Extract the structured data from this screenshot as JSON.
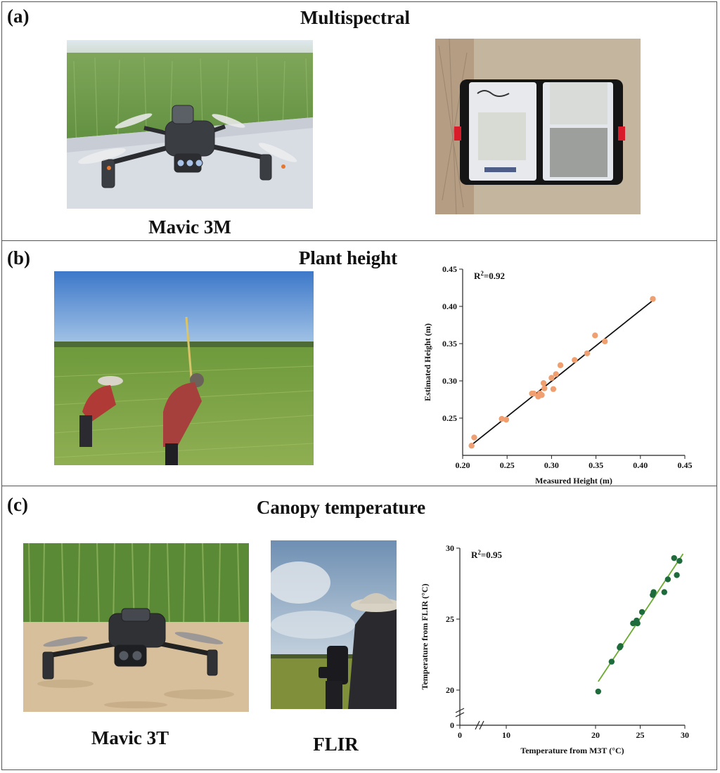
{
  "panels": {
    "a": {
      "label": "(a)",
      "title": "Multispectral",
      "drone_caption": "Mavic 3M",
      "images": {
        "drone": "drone-over-wheat-photo",
        "panel_case": "calibration-panel-case-photo"
      }
    },
    "b": {
      "label": "(b)",
      "title": "Plant height",
      "images": {
        "field": "field-measurement-photo"
      }
    },
    "c": {
      "label": "(c)",
      "title": "Canopy temperature",
      "drone_caption": "Mavic 3T",
      "flir_caption": "FLIR",
      "images": {
        "drone": "thermal-drone-photo",
        "flir": "flir-handheld-photo"
      }
    }
  },
  "colors": {
    "height_points": "#f0a070",
    "height_line": "#111111",
    "temp_points": "#1e6b3c",
    "temp_line": "#6aab2e"
  },
  "chart_data": [
    {
      "id": "height",
      "type": "scatter",
      "xlabel": "Measured Height (m)",
      "ylabel": "Estimated Height (m)",
      "annotation_base": "R",
      "annotation_sup": "2",
      "annotation_value": "=0.92",
      "xlim": [
        0.2,
        0.45
      ],
      "ylim": [
        0.2,
        0.45
      ],
      "xticks": [
        0.2,
        0.25,
        0.3,
        0.35,
        0.4,
        0.45
      ],
      "yticks": [
        0.25,
        0.3,
        0.35,
        0.4,
        0.45
      ],
      "xtick_labels": [
        "0.20",
        "0.25",
        "0.30",
        "0.35",
        "0.40",
        "0.45"
      ],
      "ytick_labels": [
        "0.25",
        "0.30",
        "0.35",
        "0.40",
        "0.45"
      ],
      "fit_line": [
        [
          0.21,
          0.214
        ],
        [
          0.414,
          0.408
        ]
      ],
      "points": [
        [
          0.21,
          0.213
        ],
        [
          0.213,
          0.224
        ],
        [
          0.244,
          0.249
        ],
        [
          0.249,
          0.248
        ],
        [
          0.278,
          0.283
        ],
        [
          0.28,
          0.283
        ],
        [
          0.285,
          0.279
        ],
        [
          0.287,
          0.283
        ],
        [
          0.289,
          0.281
        ],
        [
          0.291,
          0.297
        ],
        [
          0.292,
          0.29
        ],
        [
          0.3,
          0.304
        ],
        [
          0.302,
          0.289
        ],
        [
          0.305,
          0.309
        ],
        [
          0.31,
          0.321
        ],
        [
          0.326,
          0.328
        ],
        [
          0.34,
          0.337
        ],
        [
          0.349,
          0.361
        ],
        [
          0.36,
          0.353
        ],
        [
          0.414,
          0.41
        ]
      ],
      "grid": false
    },
    {
      "id": "temperature",
      "type": "scatter",
      "xlabel": "Temperature from M3T (°C)",
      "ylabel": "Temperature from FLIR (°C)",
      "annotation_base": "R",
      "annotation_sup": "2",
      "annotation_value": "=0.95",
      "axis_break": true,
      "xlim": [
        0,
        30
      ],
      "ylim": [
        0,
        30
      ],
      "xticks": [
        0,
        10,
        20,
        25,
        30
      ],
      "yticks": [
        0,
        20,
        25,
        30
      ],
      "xtick_labels": [
        "0",
        "10",
        "20",
        "25",
        "30"
      ],
      "ytick_labels": [
        "0",
        "20",
        "25",
        "30"
      ],
      "fit_line": [
        [
          20.3,
          20.6
        ],
        [
          29.8,
          29.6
        ]
      ],
      "points": [
        [
          20.3,
          19.9
        ],
        [
          21.8,
          22.0
        ],
        [
          22.7,
          23.0
        ],
        [
          22.8,
          23.1
        ],
        [
          24.2,
          24.7
        ],
        [
          24.6,
          24.9
        ],
        [
          24.7,
          24.7
        ],
        [
          25.2,
          25.5
        ],
        [
          26.4,
          26.7
        ],
        [
          26.5,
          26.9
        ],
        [
          27.7,
          26.9
        ],
        [
          28.1,
          27.8
        ],
        [
          28.8,
          29.3
        ],
        [
          29.1,
          28.1
        ],
        [
          29.4,
          29.1
        ]
      ],
      "grid": false
    }
  ]
}
